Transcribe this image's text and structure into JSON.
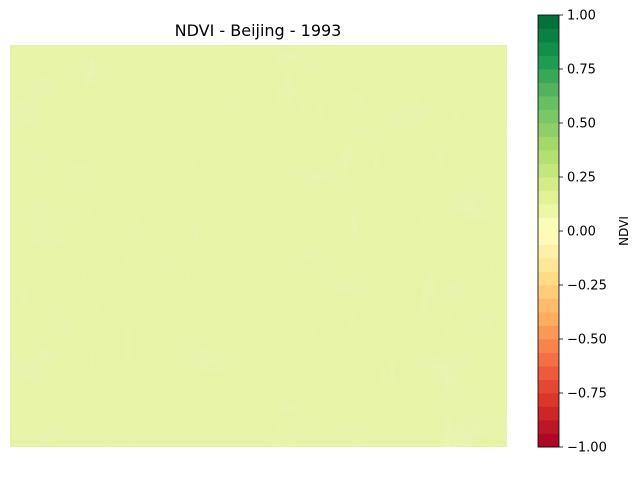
{
  "chart_data": {
    "type": "heatmap",
    "title": "NDVI - Beijing - 1993",
    "colorbar": {
      "label": "NDVI",
      "range": [
        -1.0,
        1.0
      ],
      "ticks": [
        1.0,
        0.75,
        0.5,
        0.25,
        0.0,
        -0.25,
        -0.5,
        -0.75,
        -1.0
      ],
      "tick_labels": [
        "1.00",
        "0.75",
        "0.50",
        "0.25",
        "0.00",
        "−0.25",
        "−0.50",
        "−0.75",
        "−1.00"
      ],
      "levels": 32,
      "colormap": "RdYlGn",
      "colormap_stops": [
        "#a50026",
        "#d73027",
        "#f46d43",
        "#fdae61",
        "#fee08b",
        "#ffffbf",
        "#d9ef8b",
        "#a6d96a",
        "#66bd63",
        "#1a9850",
        "#006837"
      ]
    },
    "image": {
      "description_values": "NDVI raster values mostly between about 0.05 and 0.25",
      "dominant_value": 0.12,
      "value_min": 0.05,
      "value_max": 0.25
    },
    "axes_visible": false,
    "grid": false
  }
}
